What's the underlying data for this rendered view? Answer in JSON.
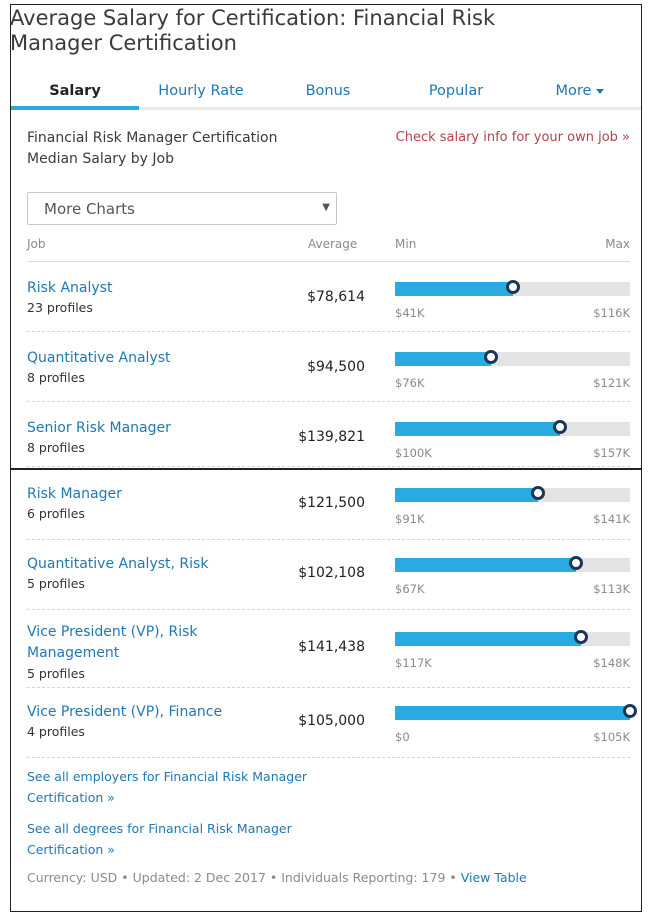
{
  "page": {
    "title": "Average Salary for Certification: Financial Risk Manager Certification"
  },
  "tabs": [
    {
      "label": "Salary",
      "active": true
    },
    {
      "label": "Hourly Rate"
    },
    {
      "label": "Bonus"
    },
    {
      "label": "Popular"
    },
    {
      "label": "More"
    }
  ],
  "chart": {
    "heading_line1": "Financial Risk Manager Certification",
    "heading_line2": "Median Salary by Job",
    "own_job_link": "Check salary info for your own job »",
    "select_value": "More Charts",
    "columns": {
      "job": "Job",
      "average": "Average",
      "min": "Min",
      "max": "Max"
    }
  },
  "colors": {
    "link": "#1f77b4",
    "bar": "#29abe2",
    "track": "#e3e3e3",
    "dot": "#1d3557",
    "accent_link": "#b5424a"
  },
  "rows": [
    {
      "title": "Risk Analyst",
      "profiles": "23 profiles",
      "average": "$78,614",
      "min": "$41K",
      "max": "$116K",
      "position": 0.5
    },
    {
      "title": "Quantitative Analyst",
      "profiles": "8 profiles",
      "average": "$94,500",
      "min": "$76K",
      "max": "$121K",
      "position": 0.41
    },
    {
      "title": "Senior Risk Manager",
      "profiles": "8 profiles",
      "average": "$139,821",
      "min": "$100K",
      "max": "$157K",
      "position": 0.7
    },
    {
      "title": "Risk Manager",
      "profiles": "6 profiles",
      "average": "$121,500",
      "min": "$91K",
      "max": "$141K",
      "position": 0.61
    },
    {
      "title": "Quantitative Analyst, Risk",
      "profiles": "5 profiles",
      "average": "$102,108",
      "min": "$67K",
      "max": "$113K",
      "position": 0.77
    },
    {
      "title": "Vice President (VP), Risk Management",
      "profiles": "5 profiles",
      "average": "$141,438",
      "min": "$117K",
      "max": "$148K",
      "position": 0.79
    },
    {
      "title": "Vice President (VP), Finance",
      "profiles": "4 profiles",
      "average": "$105,000",
      "min": "$0",
      "max": "$105K",
      "position": 1.0
    }
  ],
  "footer": {
    "employers_link": "See all employers for Financial Risk Manager Certification »",
    "degrees_link": "See all degrees for Financial Risk Manager Certification »",
    "meta": "Currency: USD • Updated: 2 Dec 2017 • Individuals Reporting: 179 • ",
    "view_table": "View Table"
  }
}
